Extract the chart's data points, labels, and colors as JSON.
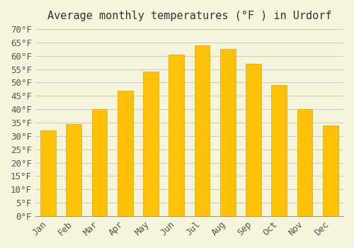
{
  "title": "Average monthly temperatures (°F ) in Urdorf",
  "months": [
    "Jan",
    "Feb",
    "Mar",
    "Apr",
    "May",
    "Jun",
    "Jul",
    "Aug",
    "Sep",
    "Oct",
    "Nov",
    "Dec"
  ],
  "values": [
    32,
    34.5,
    40,
    47,
    54,
    60.5,
    64,
    62.5,
    57,
    49,
    40,
    34
  ],
  "bar_color_top": "#FFC107",
  "bar_color_bottom": "#FFB300",
  "bar_edge_color": "#E6A800",
  "background_color": "#F5F5DC",
  "grid_color": "#CCCCCC",
  "ylim": [
    0,
    70
  ],
  "ytick_step": 5,
  "title_fontsize": 11,
  "tick_fontsize": 9
}
